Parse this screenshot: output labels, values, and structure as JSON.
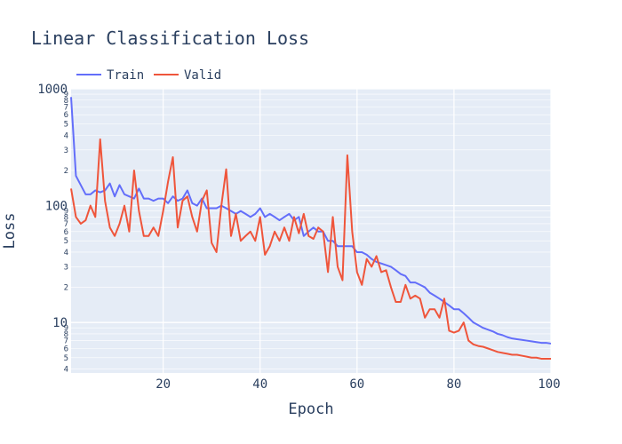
{
  "chart_data": {
    "type": "line",
    "title": "Linear Classification Loss",
    "xlabel": "Epoch",
    "ylabel": "Loss",
    "yscale": "log",
    "xlim": [
      1,
      100
    ],
    "ylim": [
      3.7,
      1000
    ],
    "grid": true,
    "legend_position": "top-left",
    "x_ticks": [
      20,
      40,
      60,
      80,
      100
    ],
    "x_tick_labels": [
      "20",
      "40",
      "60",
      "80",
      "100"
    ],
    "y_major_ticks": [
      10,
      100,
      1000
    ],
    "y_major_tick_labels": [
      "10",
      "100",
      "1000"
    ],
    "y_minor_ticks": [
      4,
      5,
      6,
      7,
      8,
      9,
      20,
      30,
      40,
      50,
      60,
      70,
      80,
      90,
      200,
      300,
      400,
      500,
      600,
      700,
      800,
      900
    ],
    "y_minor_tick_labels": [
      "4",
      "5",
      "6",
      "7",
      "8",
      "9",
      "2",
      "3",
      "4",
      "5",
      "6",
      "7",
      "8",
      "9",
      "2",
      "3",
      "4",
      "5",
      "6",
      "7",
      "8",
      "9"
    ],
    "colors": {
      "Train": "#636efa",
      "Valid": "#ef553b",
      "plot_bg": "#e5ecf6"
    },
    "series": [
      {
        "name": "Train",
        "color": "#636efa",
        "x": [
          1,
          2,
          3,
          4,
          5,
          6,
          7,
          8,
          9,
          10,
          11,
          12,
          13,
          14,
          15,
          16,
          17,
          18,
          19,
          20,
          21,
          22,
          23,
          24,
          25,
          26,
          27,
          28,
          29,
          30,
          31,
          32,
          33,
          34,
          35,
          36,
          37,
          38,
          39,
          40,
          41,
          42,
          43,
          44,
          45,
          46,
          47,
          48,
          49,
          50,
          51,
          52,
          53,
          54,
          55,
          56,
          57,
          58,
          59,
          60,
          61,
          62,
          63,
          64,
          65,
          66,
          67,
          68,
          69,
          70,
          71,
          72,
          73,
          74,
          75,
          76,
          77,
          78,
          79,
          80,
          81,
          82,
          83,
          84,
          85,
          86,
          87,
          88,
          89,
          90,
          91,
          92,
          93,
          94,
          95,
          96,
          97,
          98,
          99,
          100
        ],
        "values": [
          850,
          180,
          150,
          125,
          125,
          135,
          130,
          135,
          155,
          120,
          150,
          125,
          120,
          115,
          140,
          115,
          115,
          110,
          115,
          115,
          105,
          120,
          110,
          115,
          135,
          105,
          100,
          115,
          95,
          95,
          95,
          100,
          95,
          90,
          85,
          90,
          85,
          80,
          85,
          95,
          80,
          85,
          80,
          75,
          80,
          85,
          75,
          80,
          55,
          60,
          65,
          60,
          60,
          50,
          50,
          45,
          45,
          45,
          45,
          40,
          40,
          38,
          35,
          33,
          32,
          31,
          30,
          28,
          26,
          25,
          22,
          22,
          21,
          20,
          18,
          17,
          16,
          15,
          14,
          13,
          13,
          12,
          11,
          10,
          9.5,
          9,
          8.7,
          8.4,
          8,
          7.8,
          7.5,
          7.3,
          7.2,
          7.1,
          7,
          6.9,
          6.8,
          6.7,
          6.7,
          6.6
        ]
      },
      {
        "name": "Valid",
        "color": "#ef553b",
        "x": [
          1,
          2,
          3,
          4,
          5,
          6,
          7,
          8,
          9,
          10,
          11,
          12,
          13,
          14,
          15,
          16,
          17,
          18,
          19,
          20,
          21,
          22,
          23,
          24,
          25,
          26,
          27,
          28,
          29,
          30,
          31,
          32,
          33,
          34,
          35,
          36,
          37,
          38,
          39,
          40,
          41,
          42,
          43,
          44,
          45,
          46,
          47,
          48,
          49,
          50,
          51,
          52,
          53,
          54,
          55,
          56,
          57,
          58,
          59,
          60,
          61,
          62,
          63,
          64,
          65,
          66,
          67,
          68,
          69,
          70,
          71,
          72,
          73,
          74,
          75,
          76,
          77,
          78,
          79,
          80,
          81,
          82,
          83,
          84,
          85,
          86,
          87,
          88,
          89,
          90,
          91,
          92,
          93,
          94,
          95,
          96,
          97,
          98,
          99,
          100
        ],
        "values": [
          140,
          80,
          70,
          75,
          100,
          80,
          370,
          110,
          65,
          55,
          70,
          100,
          60,
          200,
          90,
          55,
          55,
          65,
          55,
          90,
          160,
          260,
          65,
          110,
          120,
          80,
          60,
          110,
          135,
          48,
          40,
          100,
          205,
          55,
          85,
          50,
          55,
          60,
          50,
          80,
          38,
          45,
          60,
          50,
          65,
          50,
          80,
          58,
          85,
          55,
          52,
          65,
          60,
          27,
          80,
          30,
          23,
          270,
          60,
          27,
          21,
          35,
          30,
          37,
          27,
          28,
          20,
          15,
          15,
          21,
          16,
          17,
          16,
          11,
          13,
          13,
          11,
          16,
          8.5,
          8.2,
          8.5,
          10,
          7,
          6.5,
          6.3,
          6.2,
          6,
          5.8,
          5.6,
          5.5,
          5.4,
          5.3,
          5.3,
          5.2,
          5.1,
          5,
          5,
          4.9,
          4.9,
          4.9
        ]
      }
    ]
  }
}
